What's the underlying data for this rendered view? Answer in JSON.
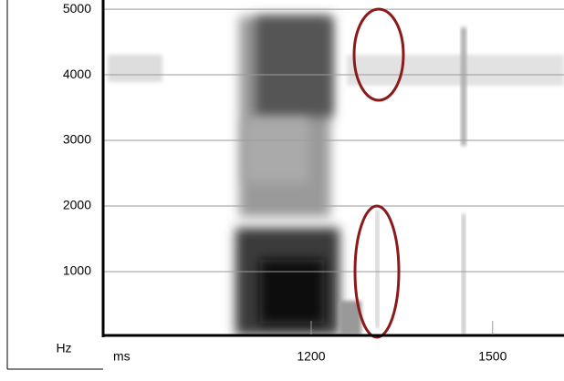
{
  "chart_data": {
    "type": "spectrogram",
    "y_label": "Hz",
    "x_label": "ms",
    "xlim": [
      856,
      1618
    ],
    "xticks": [
      1200,
      1500
    ],
    "ylim": [
      0,
      5140
    ],
    "yticks": [
      1000,
      2000,
      3000,
      4000,
      5000
    ],
    "grid": true,
    "grid_color": "#9a9a9a",
    "annotation_color": "#8b1a1a"
  }
}
